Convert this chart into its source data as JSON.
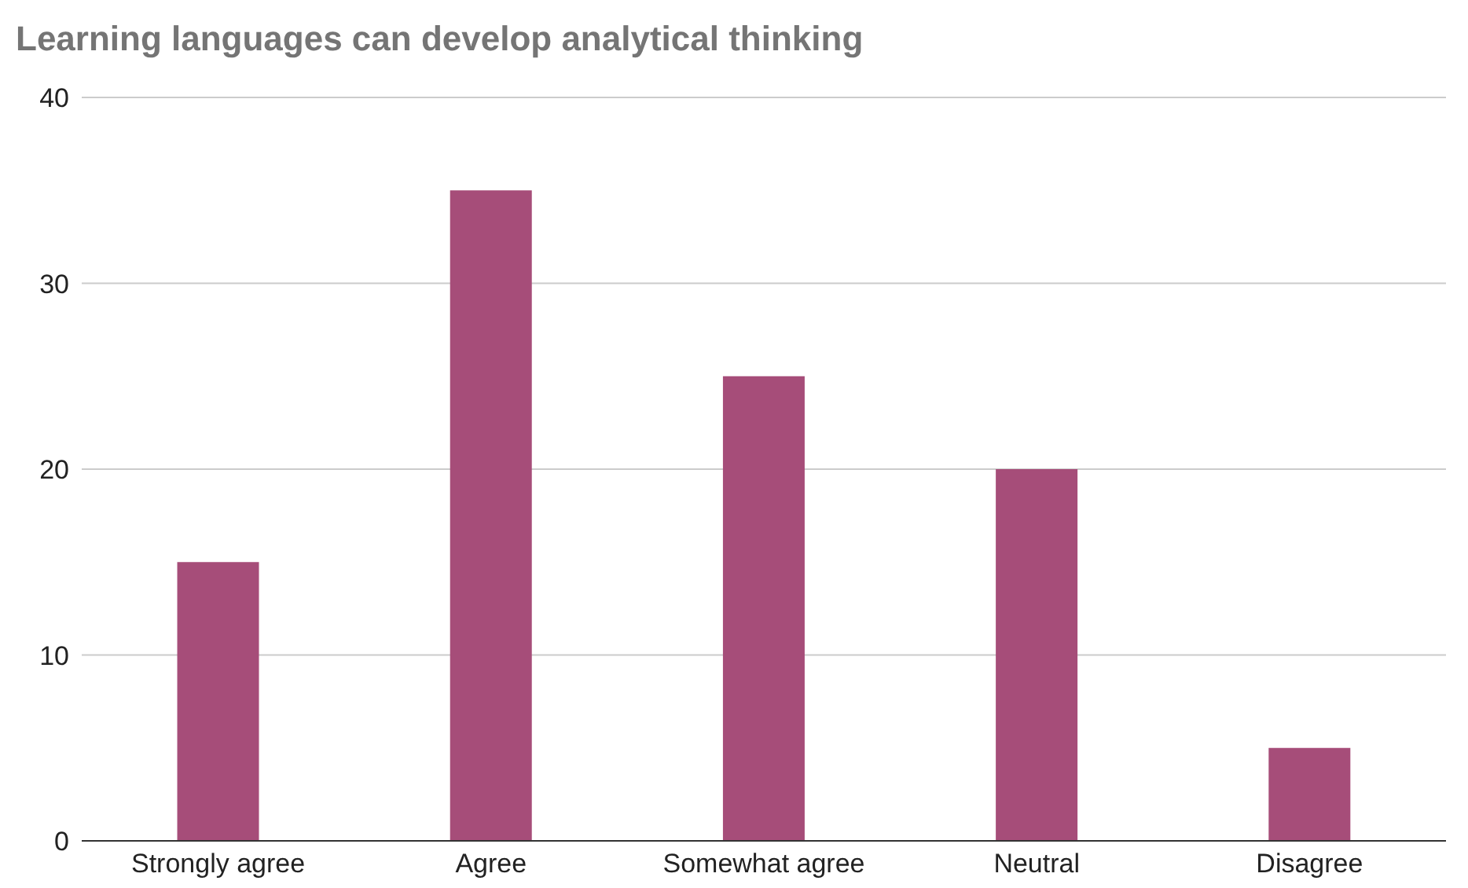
{
  "chart_data": {
    "type": "bar",
    "title": "Learning languages can develop analytical thinking",
    "categories": [
      "Strongly agree",
      "Agree",
      "Somewhat agree",
      "Neutral",
      "Disagree"
    ],
    "values": [
      15,
      35,
      25,
      20,
      5
    ],
    "color": "#a64d79",
    "ylim": [
      0,
      40
    ],
    "yticks": [
      0,
      10,
      20,
      30,
      40
    ],
    "grid": "y"
  }
}
